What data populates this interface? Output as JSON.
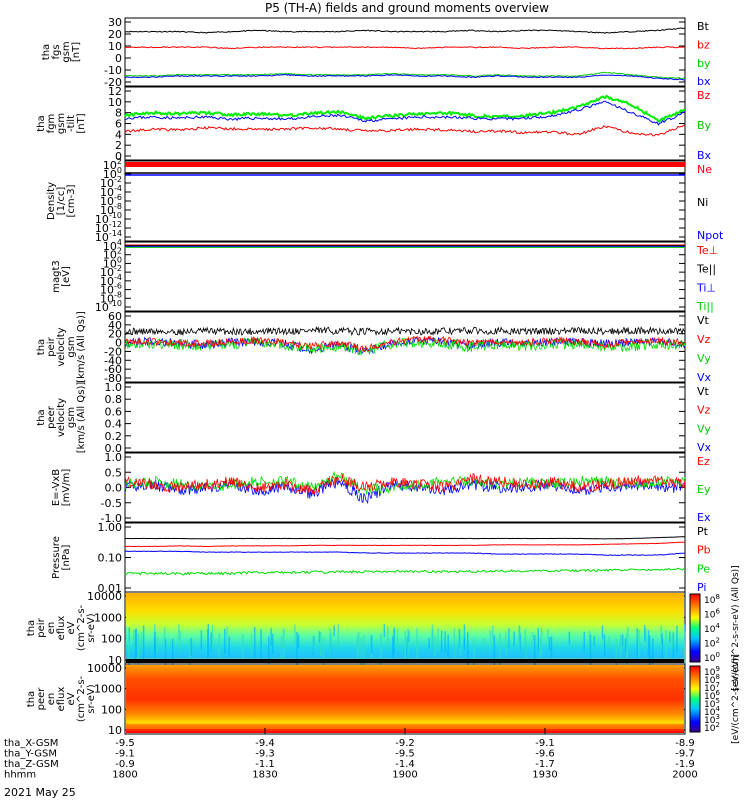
{
  "title": "P5 (TH-A) fields and ground moments overview",
  "date_label": "2021 May 25",
  "panels": [
    {
      "id": "fgs",
      "ylabel": [
        "tha",
        "fgs",
        "gsm",
        "[nT]"
      ],
      "ticks": [
        "30",
        "20",
        "10",
        "0",
        "-10",
        "-20"
      ],
      "legend": [
        {
          "t": "Bt",
          "c": "#000000"
        },
        {
          "t": "bz",
          "c": "#ff0000"
        },
        {
          "t": "by",
          "c": "#00cc00"
        },
        {
          "t": "bx",
          "c": "#0000ff"
        }
      ]
    },
    {
      "id": "fgm",
      "ylabel": [
        "tha",
        "fgm",
        "gsm",
        "-tilt",
        "[nT]"
      ],
      "ticks": [
        "12",
        "10",
        "8",
        "6",
        "4",
        "2",
        "0"
      ],
      "legend": [
        {
          "t": "Bz",
          "c": "#ff0000"
        },
        {
          "t": "By",
          "c": "#00cc00"
        },
        {
          "t": "Bx",
          "c": "#0000ff"
        }
      ]
    },
    {
      "id": "density",
      "ylabel": [
        "Density",
        "[1/cc]",
        "[cm-3]"
      ],
      "ticks": [
        "10^2",
        "10^0",
        "10^-2",
        "10^-4",
        "10^-6",
        "10^-8",
        "10^-10",
        "10^-12",
        "10^-14"
      ],
      "legend": [
        {
          "t": "Ne",
          "c": "#ff0000"
        },
        {
          "t": "Ni",
          "c": "#000000"
        },
        {
          "t": "Npot",
          "c": "#0000ff"
        }
      ]
    },
    {
      "id": "temp",
      "ylabel": [
        "magt3",
        "[eV]"
      ],
      "ticks": [
        "10^4",
        "10^2",
        "10^0",
        "10^-2",
        "10^-4",
        "10^-6",
        "10^-8",
        "10^-10"
      ],
      "legend": [
        {
          "t": "Te⊥",
          "c": "#ff0000"
        },
        {
          "t": "Te||",
          "c": "#000000"
        },
        {
          "t": "Ti⊥",
          "c": "#0000ff"
        },
        {
          "t": "Ti||",
          "c": "#00cc00"
        }
      ]
    },
    {
      "id": "peir_vel",
      "ylabel": [
        "tha",
        "peir",
        "velocity",
        "gsm",
        "[km/s (All Qs)]"
      ],
      "ticks": [
        "60",
        "40",
        "20",
        "0",
        "-20",
        "-40",
        "-60",
        "-80"
      ],
      "legend": [
        {
          "t": "Vt",
          "c": "#000000"
        },
        {
          "t": "Vz",
          "c": "#ff0000"
        },
        {
          "t": "Vy",
          "c": "#00cc00"
        },
        {
          "t": "Vx",
          "c": "#0000ff"
        }
      ]
    },
    {
      "id": "peer_vel",
      "ylabel": [
        "tha",
        "peer",
        "velocity",
        "gsm",
        "[km/s (All Qs)]"
      ],
      "ticks": [
        "1.0",
        "0.8",
        "0.6",
        "0.4",
        "0.2",
        "0.0"
      ],
      "legend": [
        {
          "t": "Vt",
          "c": "#000000"
        },
        {
          "t": "Vz",
          "c": "#ff0000"
        },
        {
          "t": "Vy",
          "c": "#00cc00"
        },
        {
          "t": "Vx",
          "c": "#0000ff"
        }
      ]
    },
    {
      "id": "efield",
      "ylabel": [
        "E=-VxB",
        "[mV/m]"
      ],
      "ticks": [
        "1.0",
        "0.5",
        "0.0",
        "-0.5",
        "-1.0"
      ],
      "legend": [
        {
          "t": "Ez",
          "c": "#ff0000"
        },
        {
          "t": "Ey",
          "c": "#00cc00"
        },
        {
          "t": "Ex",
          "c": "#0000ff"
        }
      ]
    },
    {
      "id": "pressure",
      "ylabel": [
        "Pressure",
        "[nPa]"
      ],
      "ticks": [
        "1.00",
        "0.10",
        "0.01"
      ],
      "legend": [
        {
          "t": "Pt",
          "c": "#000000"
        },
        {
          "t": "Pb",
          "c": "#ff0000"
        },
        {
          "t": "Pe",
          "c": "#00cc00"
        },
        {
          "t": "Pi",
          "c": "#0000ff"
        }
      ]
    },
    {
      "id": "peir_spec",
      "ylabel": [
        "tha",
        "peir",
        "en",
        "eflux",
        "eV",
        "(cm^2-s-",
        "sr-eV)"
      ],
      "ticks": [
        "10000",
        "1000",
        "100",
        "10"
      ],
      "colorbar_ticks": [
        "10^8",
        "10^6",
        "10^4",
        "10^2",
        "10^0"
      ],
      "colorbar_label": "[eV/(cm^2-s-sr-eV) (All Qs)]"
    },
    {
      "id": "peer_spec",
      "ylabel": [
        "tha",
        "peer",
        "en",
        "eflux",
        "eV",
        "(cm^2-s-",
        "sr-eV)"
      ],
      "ticks": [
        "10000",
        "1000",
        "100",
        "10"
      ],
      "colorbar_ticks": [
        "10^9",
        "10^8",
        "10^7",
        "10^6",
        "10^5",
        "10^4",
        "10^3",
        "10^2"
      ],
      "colorbar_label": "[eV/(cm^2-s-sr-eV)]"
    }
  ],
  "xaxis": {
    "row_labels": [
      "tha_X-GSM",
      "tha_Y-GSM",
      "tha_Z-GSM",
      "hhmm"
    ],
    "columns": [
      [
        "-9.5",
        "-9.4",
        "-9.2",
        "-9.1",
        "-8.9"
      ],
      [
        "-9.1",
        "-9.3",
        "-9.5",
        "-9.6",
        "-9.7"
      ],
      [
        "-0.9",
        "-1.1",
        "-1.4",
        "-1.7",
        "-1.9"
      ],
      [
        "1800",
        "1830",
        "1900",
        "1930",
        "2000"
      ]
    ]
  },
  "chart_data": {
    "type": "line",
    "title": "P5 (TH-A) fields and ground moments overview",
    "x_start": "1800",
    "x_end": "2000",
    "x_unit": "hhmm",
    "series_fgs": [
      {
        "name": "Bt",
        "values": [
          22,
          22,
          22,
          21,
          22,
          23,
          22,
          22,
          22,
          23,
          22,
          22,
          22,
          23,
          22,
          23,
          23,
          22,
          21,
          22,
          23,
          25
        ]
      },
      {
        "name": "bz",
        "values": [
          9,
          9,
          9,
          9,
          8,
          9,
          9,
          9,
          9,
          9,
          9,
          8,
          9,
          9,
          9,
          8,
          9,
          9,
          8,
          8,
          9,
          9
        ]
      },
      {
        "name": "by",
        "values": [
          -15,
          -15,
          -14,
          -14,
          -14,
          -14,
          -13,
          -14,
          -14,
          -14,
          -13,
          -14,
          -14,
          -15,
          -14,
          -15,
          -15,
          -15,
          -12,
          -14,
          -16,
          -17
        ]
      },
      {
        "name": "bx",
        "values": [
          -16,
          -16,
          -15,
          -15,
          -15,
          -15,
          -14,
          -15,
          -15,
          -15,
          -14,
          -15,
          -15,
          -16,
          -15,
          -16,
          -16,
          -16,
          -14,
          -15,
          -17,
          -18
        ]
      }
    ],
    "series_fgm": [
      {
        "name": "Bz",
        "values": [
          4.5,
          5,
          4.8,
          5.2,
          5,
          4.9,
          5,
          5.2,
          5,
          4.6,
          4.7,
          5,
          4.8,
          4.5,
          4.6,
          4.3,
          4.5,
          4,
          5.5,
          4.2,
          3.8,
          5.8
        ]
      },
      {
        "name": "By",
        "values": [
          7.5,
          8,
          7.8,
          8,
          7.6,
          7.8,
          7.5,
          7.8,
          8.2,
          7,
          7.4,
          7.8,
          8,
          7.5,
          7.2,
          7.5,
          8,
          9,
          11,
          9.5,
          6.5,
          8.5
        ]
      },
      {
        "name": "Bx",
        "values": [
          7,
          7.2,
          7,
          7.2,
          6.8,
          7,
          6.8,
          7.2,
          7.5,
          6.5,
          6.8,
          7.2,
          7.2,
          7,
          6.8,
          7,
          7.4,
          8.5,
          10,
          8,
          6,
          8
        ]
      }
    ],
    "series_efield": [
      {
        "name": "Ez",
        "values": [
          0.2,
          0.1,
          0.0,
          0.1,
          0.2,
          0.0,
          0.1,
          -0.1,
          0.3,
          0.0,
          0.2,
          0.1,
          0.0,
          0.3,
          0.2,
          0.1,
          0.2,
          0.0,
          0.1,
          0.2,
          0.3,
          0.1
        ]
      },
      {
        "name": "Ey",
        "values": [
          0.1,
          0.2,
          0.1,
          0.0,
          0.1,
          0.2,
          0.2,
          0.0,
          0.4,
          -0.1,
          0.0,
          0.1,
          0.2,
          0.2,
          0.1,
          0.2,
          0.1,
          0.2,
          0.2,
          0.1,
          0.2,
          0.2
        ]
      },
      {
        "name": "Ex",
        "values": [
          0.0,
          0.1,
          -0.1,
          0.0,
          0.1,
          -0.1,
          0.0,
          -0.2,
          0.2,
          -0.4,
          0.1,
          0.0,
          -0.1,
          0.1,
          0.0,
          0.0,
          0.1,
          -0.1,
          0.0,
          0.1,
          0.0,
          0.0
        ]
      }
    ],
    "series_pressure": [
      {
        "name": "Pt",
        "values": [
          0.42,
          0.42,
          0.42,
          0.41,
          0.42,
          0.42,
          0.42,
          0.42,
          0.42,
          0.42,
          0.42,
          0.42,
          0.42,
          0.42,
          0.42,
          0.42,
          0.42,
          0.42,
          0.41,
          0.42,
          0.45,
          0.48
        ]
      },
      {
        "name": "Pb",
        "values": [
          0.23,
          0.23,
          0.24,
          0.23,
          0.24,
          0.24,
          0.24,
          0.25,
          0.25,
          0.25,
          0.25,
          0.25,
          0.25,
          0.25,
          0.26,
          0.26,
          0.26,
          0.26,
          0.27,
          0.28,
          0.29,
          0.32
        ]
      },
      {
        "name": "Pi",
        "values": [
          0.16,
          0.16,
          0.16,
          0.15,
          0.15,
          0.15,
          0.15,
          0.15,
          0.15,
          0.14,
          0.14,
          0.14,
          0.14,
          0.14,
          0.13,
          0.13,
          0.13,
          0.13,
          0.12,
          0.12,
          0.12,
          0.14
        ]
      },
      {
        "name": "Pe",
        "values": [
          0.03,
          0.03,
          0.03,
          0.03,
          0.03,
          0.032,
          0.032,
          0.033,
          0.034,
          0.034,
          0.035,
          0.035,
          0.035,
          0.035,
          0.036,
          0.036,
          0.037,
          0.037,
          0.038,
          0.04,
          0.04,
          0.042
        ]
      }
    ]
  }
}
